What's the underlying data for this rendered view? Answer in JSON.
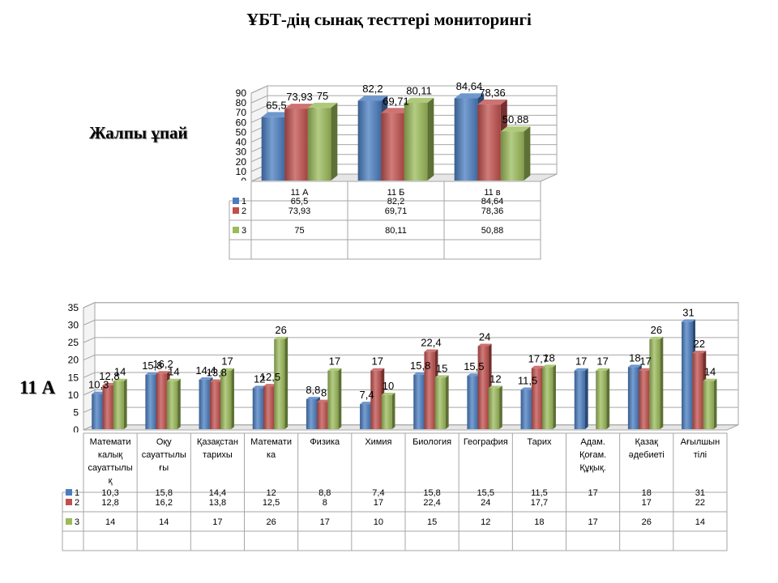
{
  "page": {
    "title": "ҰБТ-дің сынақ тесттері мониторингі"
  },
  "colors": {
    "series1": "#4a7dc0",
    "series2": "#c0504d",
    "series3": "#9bbb59",
    "grid": "#a6a6a6"
  },
  "chart_data": [
    {
      "type": "bar",
      "side_label": "Жалпы ұпай",
      "categories": [
        "11 А",
        "11 Б",
        "11 в"
      ],
      "series": [
        {
          "name": "1",
          "values": [
            65.5,
            82.2,
            84.64
          ],
          "labels": [
            "65,5",
            "82,2",
            "84,64"
          ]
        },
        {
          "name": "2",
          "values": [
            73.93,
            69.71,
            78.36
          ],
          "labels": [
            "73,93",
            "69,71",
            "78,36"
          ]
        },
        {
          "name": "3",
          "values": [
            75,
            80.11,
            50.88
          ],
          "labels": [
            "75",
            "80,11",
            "50,88"
          ]
        }
      ],
      "ylim": [
        0,
        90
      ],
      "yticks": [
        "0",
        "10",
        "20",
        "30",
        "40",
        "50",
        "60",
        "70",
        "80",
        "90"
      ],
      "grid": true,
      "data_table": true
    },
    {
      "type": "bar",
      "side_label": "11 А",
      "categories": [
        "Математикалық сауаттылық",
        "Оқу сауаттылығы",
        "Қазақстан тарихы",
        "Математика",
        "Физика",
        "Химия",
        "Биология",
        "География",
        "Тарих",
        "Адам. Қоғам. Құқық.",
        "Қазақ әдебиеті",
        "Ағылшын тілі"
      ],
      "category_lines": [
        [
          "Математи",
          "калық",
          "сауаттылы",
          "қ"
        ],
        [
          "Оқу",
          "сауаттылы",
          "ғы"
        ],
        [
          "Қазақстан",
          "тарихы"
        ],
        [
          "Математи",
          "ка"
        ],
        [
          "Физика"
        ],
        [
          "Химия"
        ],
        [
          "Биология"
        ],
        [
          "География"
        ],
        [
          "Тарих"
        ],
        [
          "Адам.",
          "Қоғам.",
          "Құқық."
        ],
        [
          "Қазақ",
          "әдебиеті"
        ],
        [
          "Ағылшын",
          "тілі"
        ]
      ],
      "series": [
        {
          "name": "1",
          "values": [
            10.3,
            15.8,
            14.4,
            12,
            8.8,
            7.4,
            15.8,
            15.5,
            11.5,
            17,
            18,
            31
          ],
          "labels": [
            "10,3",
            "15,8",
            "14,4",
            "12",
            "8,8",
            "7,4",
            "15,8",
            "15,5",
            "11,5",
            "17",
            "18",
            "31"
          ]
        },
        {
          "name": "2",
          "values": [
            12.8,
            16.2,
            13.8,
            12.5,
            8,
            17,
            22.4,
            24,
            17.7,
            null,
            17,
            22
          ],
          "labels": [
            "12,8",
            "16,2",
            "13,8",
            "12,5",
            "8",
            "17",
            "22,4",
            "24",
            "17,7",
            "",
            "17",
            "22"
          ]
        },
        {
          "name": "3",
          "values": [
            14,
            14,
            17,
            26,
            17,
            10,
            15,
            12,
            18,
            17,
            26,
            14
          ],
          "labels": [
            "14",
            "14",
            "17",
            "26",
            "17",
            "10",
            "15",
            "12",
            "18",
            "17",
            "26",
            "14"
          ]
        }
      ],
      "ylim": [
        0,
        35
      ],
      "yticks": [
        "0",
        "5",
        "10",
        "15",
        "20",
        "25",
        "30",
        "35"
      ],
      "grid": true,
      "data_table": true
    }
  ]
}
